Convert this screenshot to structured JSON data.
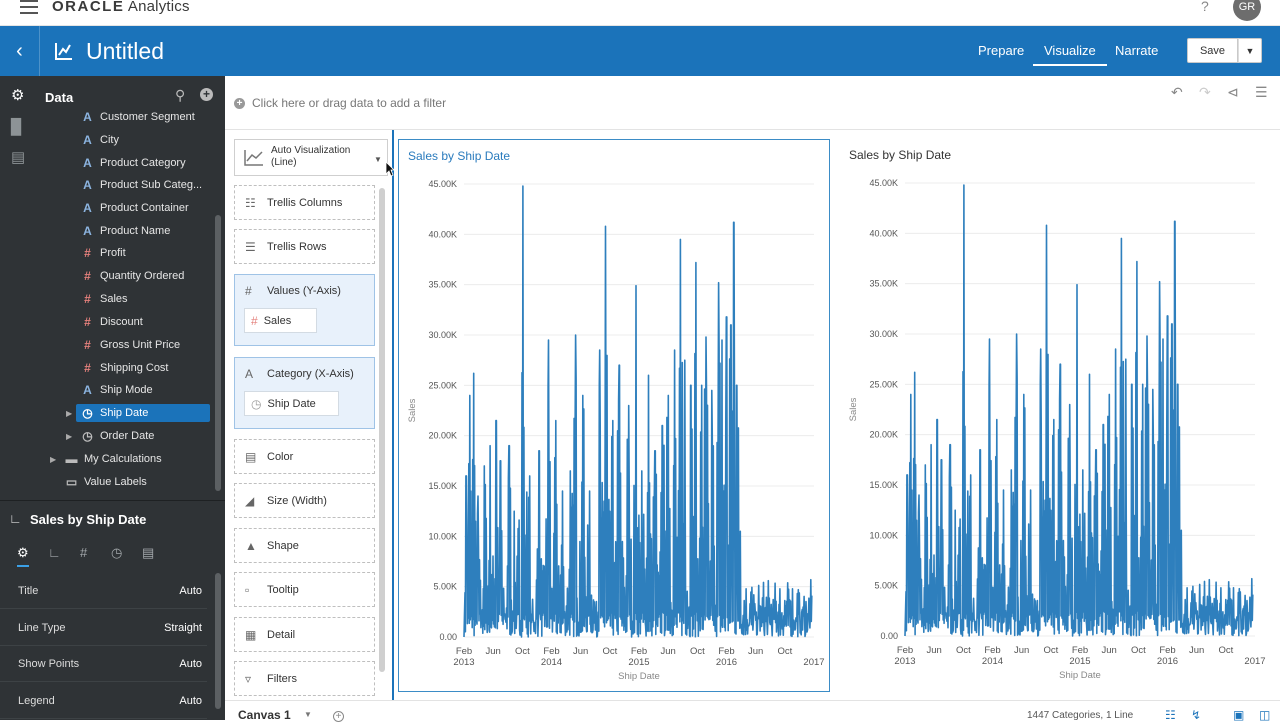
{
  "topbar": {
    "brand_bold": "ORACLE",
    "brand_rest": " Analytics",
    "help": "?",
    "avatar": "GR"
  },
  "header": {
    "title": "Untitled",
    "nav": [
      "Prepare",
      "Visualize",
      "Narrate"
    ],
    "active_nav": "Visualize",
    "save_label": "Save",
    "accent": "#1b73ba"
  },
  "data_panel": {
    "title": "Data",
    "items": [
      {
        "label": "Customer Segment",
        "type": "attribute"
      },
      {
        "label": "City",
        "type": "attribute"
      },
      {
        "label": "Product Category",
        "type": "attribute"
      },
      {
        "label": "Product Sub Categ...",
        "type": "attribute"
      },
      {
        "label": "Product Container",
        "type": "attribute"
      },
      {
        "label": "Product Name",
        "type": "attribute"
      },
      {
        "label": "Profit",
        "type": "measure"
      },
      {
        "label": "Quantity Ordered",
        "type": "measure"
      },
      {
        "label": "Sales",
        "type": "measure"
      },
      {
        "label": "Discount",
        "type": "measure"
      },
      {
        "label": "Gross Unit Price",
        "type": "measure"
      },
      {
        "label": "Shipping Cost",
        "type": "measure"
      },
      {
        "label": "Ship Mode",
        "type": "attribute"
      },
      {
        "label": "Ship Date",
        "type": "time",
        "selected": true
      },
      {
        "label": "Order Date",
        "type": "time"
      }
    ],
    "folders": [
      "My Calculations",
      "Value Labels"
    ]
  },
  "properties": {
    "title": "Sales by Ship Date",
    "rows": [
      {
        "label": "Title",
        "value": "Auto"
      },
      {
        "label": "Line Type",
        "value": "Straight"
      },
      {
        "label": "Show Points",
        "value": "Auto"
      },
      {
        "label": "Legend",
        "value": "Auto"
      }
    ]
  },
  "filterbar": {
    "placeholder": "Click here or drag data to add a filter"
  },
  "grammar": {
    "viz_type": "Auto Visualization (Line)",
    "trellis_columns": "Trellis Columns",
    "trellis_rows": "Trellis Rows",
    "values_label": "Values (Y-Axis)",
    "values_pill": "Sales",
    "category_label": "Category (X-Axis)",
    "category_pill": "Ship Date",
    "color": "Color",
    "size": "Size (Width)",
    "shape": "Shape",
    "tooltip": "Tooltip",
    "detail": "Detail",
    "filters": "Filters"
  },
  "bottombar": {
    "canvas_tab": "Canvas 1",
    "status": "1447 Categories, 1 Line"
  },
  "chart_data": [
    {
      "type": "line",
      "title": "Sales by Ship Date",
      "xlabel": "Ship Date",
      "ylabel": "Sales",
      "ylim": [
        0,
        45000
      ],
      "y_ticks": [
        "0.00",
        "5.00K",
        "10.00K",
        "15.00K",
        "20.00K",
        "25.00K",
        "30.00K",
        "35.00K",
        "40.00K",
        "45.00K"
      ],
      "x_ticks": [
        {
          "top": "Feb",
          "bottom": "2013"
        },
        {
          "top": "Jun",
          "bottom": ""
        },
        {
          "top": "Oct",
          "bottom": ""
        },
        {
          "top": "Feb",
          "bottom": "2014"
        },
        {
          "top": "Jun",
          "bottom": ""
        },
        {
          "top": "Oct",
          "bottom": ""
        },
        {
          "top": "Feb",
          "bottom": "2015"
        },
        {
          "top": "Jun",
          "bottom": ""
        },
        {
          "top": "Oct",
          "bottom": ""
        },
        {
          "top": "Feb",
          "bottom": "2016"
        },
        {
          "top": "Jun",
          "bottom": ""
        },
        {
          "top": "Oct",
          "bottom": ""
        },
        {
          "top": "",
          "bottom": "2017"
        }
      ],
      "series_color": "#2e7fbd",
      "peaks": [
        {
          "month": 0.3,
          "value": 16000
        },
        {
          "month": 0.8,
          "value": 24000
        },
        {
          "month": 1.3,
          "value": 26200
        },
        {
          "month": 1.9,
          "value": 14000
        },
        {
          "month": 2.8,
          "value": 17000
        },
        {
          "month": 3.6,
          "value": 19000
        },
        {
          "month": 4.4,
          "value": 21500
        },
        {
          "month": 5.0,
          "value": 17500
        },
        {
          "month": 6.2,
          "value": 19000
        },
        {
          "month": 6.9,
          "value": 12500
        },
        {
          "month": 8.1,
          "value": 44800
        },
        {
          "month": 9.0,
          "value": 16000
        },
        {
          "month": 10.3,
          "value": 18500
        },
        {
          "month": 11.6,
          "value": 29500
        },
        {
          "month": 12.6,
          "value": 21500
        },
        {
          "month": 13.5,
          "value": 14500
        },
        {
          "month": 14.6,
          "value": 16500
        },
        {
          "month": 15.3,
          "value": 30000
        },
        {
          "month": 16.3,
          "value": 24000
        },
        {
          "month": 17.2,
          "value": 14500
        },
        {
          "month": 18.6,
          "value": 28500
        },
        {
          "month": 19.4,
          "value": 40800
        },
        {
          "month": 20.4,
          "value": 21500
        },
        {
          "month": 21.3,
          "value": 27000
        },
        {
          "month": 22.6,
          "value": 23000
        },
        {
          "month": 23.6,
          "value": 34900
        },
        {
          "month": 24.4,
          "value": 16500
        },
        {
          "month": 25.3,
          "value": 26000
        },
        {
          "month": 26.2,
          "value": 18500
        },
        {
          "month": 27.2,
          "value": 21000
        },
        {
          "month": 28.0,
          "value": 24000
        },
        {
          "month": 28.9,
          "value": 28500
        },
        {
          "month": 29.7,
          "value": 39500
        },
        {
          "month": 30.3,
          "value": 27500
        },
        {
          "month": 31.1,
          "value": 25000
        },
        {
          "month": 31.8,
          "value": 37200
        },
        {
          "month": 32.6,
          "value": 25000
        },
        {
          "month": 33.2,
          "value": 29800
        },
        {
          "month": 34.0,
          "value": 24500
        },
        {
          "month": 34.9,
          "value": 35200
        },
        {
          "month": 35.4,
          "value": 29500
        },
        {
          "month": 36.0,
          "value": 31800
        },
        {
          "month": 36.6,
          "value": 31000
        },
        {
          "month": 37.0,
          "value": 41200
        },
        {
          "month": 37.4,
          "value": 25000
        },
        {
          "month": 37.9,
          "value": 10500
        }
      ]
    }
  ]
}
